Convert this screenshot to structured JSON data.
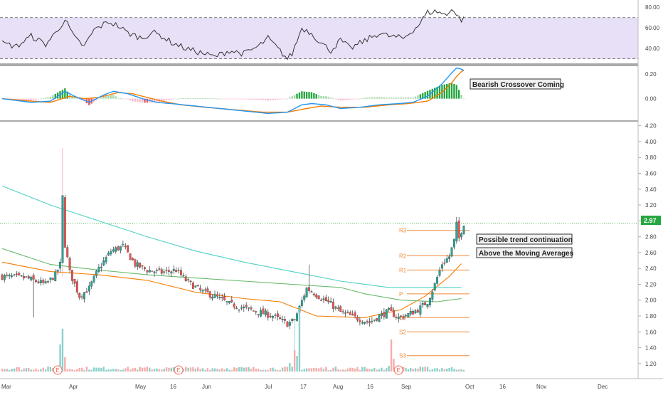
{
  "colors": {
    "up": "#26a69a",
    "down": "#ef5350",
    "ma_fast": "#f57c00",
    "ma_mid": "#66bb6a",
    "ma_slow": "#4dd0c4",
    "macd": "#2196f3",
    "signal": "#f57c00",
    "rsi": "#333333",
    "rsi_band": "#e8e0f7",
    "pivot": "#f08a3a",
    "price_tag": "#26a641",
    "earnings": "#f06b5d"
  },
  "panels": {
    "rsi": {
      "axis_ticks": [
        "80.00",
        "60.00",
        "40.00"
      ],
      "tick_values": [
        80,
        60,
        40
      ],
      "ylim": [
        27,
        85
      ],
      "band": [
        30,
        70
      ]
    },
    "macd": {
      "axis_ticks": [
        "0.20",
        "0.00"
      ],
      "tick_values": [
        0.2,
        0.0
      ],
      "ylim": [
        -0.17,
        0.27
      ],
      "annotation": "Bearish Crossover Coming"
    },
    "price": {
      "axis_ticks": [
        "4.20",
        "4.00",
        "3.80",
        "3.60",
        "3.40",
        "3.20",
        "3.00",
        "2.80",
        "2.60",
        "2.40",
        "2.20",
        "2.00",
        "1.80",
        "1.60",
        "1.40",
        "1.20"
      ],
      "tick_values": [
        4.2,
        4.0,
        3.8,
        3.6,
        3.4,
        3.2,
        3.0,
        2.8,
        2.6,
        2.4,
        2.2,
        2.0,
        1.8,
        1.6,
        1.4,
        1.2
      ],
      "ylim": [
        1.1,
        4.26
      ],
      "last_price": "2.97",
      "annotations": [
        "Possible trend continuation",
        "Above the Moving Averages"
      ]
    }
  },
  "x_axis": [
    "Mar",
    "Apr",
    "May",
    "16",
    "Jun",
    "Jul",
    "17",
    "Aug",
    "16",
    "Sep",
    "Oct",
    "16",
    "Nov",
    "Dec"
  ],
  "chart_data": {
    "type": "candlestick",
    "pivots": {
      "labels": [
        "R3",
        "R2",
        "R1",
        "P",
        "S1",
        "S2",
        "S3"
      ],
      "values": [
        2.88,
        2.56,
        2.38,
        2.08,
        1.78,
        1.6,
        1.3
      ]
    },
    "earnings_markers": [
      "E",
      "E",
      "E"
    ],
    "moving_averages": [
      {
        "values_at": [
          [
            0,
            2.48
          ],
          [
            20,
            2.36
          ],
          [
            40,
            2.32
          ],
          [
            60,
            2.25
          ],
          [
            80,
            2.1
          ],
          [
            100,
            2.02
          ],
          [
            115,
            1.98
          ],
          [
            130,
            1.8
          ],
          [
            150,
            1.78
          ],
          [
            165,
            1.88
          ],
          [
            175,
            2.05
          ],
          [
            185,
            2.3
          ],
          [
            190,
            2.46
          ]
        ]
      },
      {
        "values_at": [
          [
            0,
            2.65
          ],
          [
            20,
            2.45
          ],
          [
            40,
            2.38
          ],
          [
            60,
            2.32
          ],
          [
            80,
            2.28
          ],
          [
            100,
            2.24
          ],
          [
            120,
            2.2
          ],
          [
            140,
            2.16
          ],
          [
            150,
            2.08
          ],
          [
            165,
            2.0
          ],
          [
            180,
            1.98
          ],
          [
            190,
            2.02
          ]
        ]
      },
      {
        "values_at": [
          [
            0,
            3.44
          ],
          [
            20,
            3.2
          ],
          [
            40,
            3.0
          ],
          [
            60,
            2.8
          ],
          [
            80,
            2.62
          ],
          [
            100,
            2.48
          ],
          [
            120,
            2.36
          ],
          [
            140,
            2.24
          ],
          [
            160,
            2.16
          ],
          [
            175,
            2.16
          ],
          [
            190,
            2.16
          ]
        ]
      }
    ]
  }
}
